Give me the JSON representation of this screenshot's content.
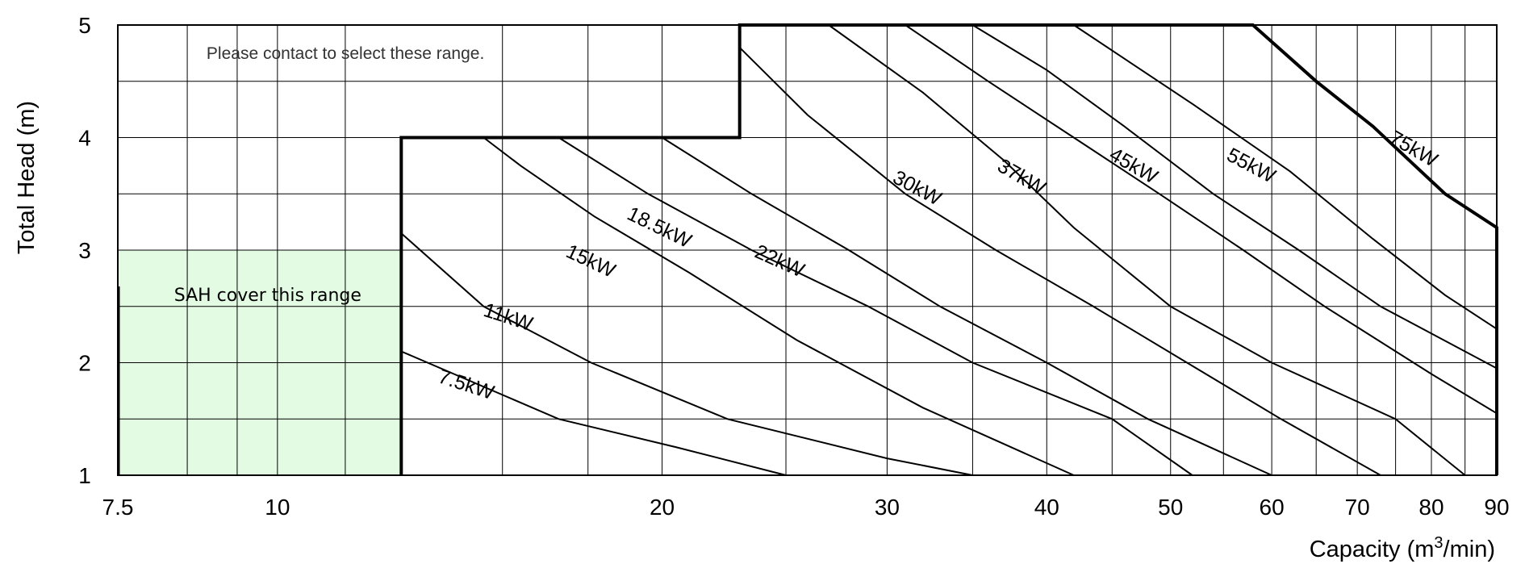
{
  "chart_data": {
    "type": "line",
    "title": "",
    "xlabel": "Capacity (m3/min)",
    "xlabel_main": "Capacity (m",
    "xlabel_sup": "3",
    "xlabel_tail": "/min)",
    "ylabel": "Total Head (m)",
    "x_scale": "log",
    "xlim": [
      7.5,
      90
    ],
    "ylim": [
      1,
      5
    ],
    "grid": true,
    "x_ticks": [
      7.5,
      10,
      20,
      30,
      40,
      50,
      60,
      70,
      80,
      90
    ],
    "x_tick_labels": [
      "7.5",
      "10",
      "20",
      "30",
      "40",
      "50",
      "60",
      "70",
      "80",
      "90"
    ],
    "x_minor_grid": [
      8.5,
      9.3,
      11.3,
      15,
      17.5,
      25,
      35,
      45,
      55,
      65,
      75,
      85
    ],
    "y_ticks": [
      1,
      2,
      3,
      4,
      5
    ],
    "y_tick_labels": [
      "1",
      "2",
      "3",
      "4",
      "5"
    ],
    "y_minor_grid": [
      1.5,
      2.5,
      3.5,
      4.5
    ],
    "series": [
      {
        "name": "7.5kW",
        "points": [
          [
            12.5,
            2.1
          ],
          [
            16.6,
            1.5
          ],
          [
            20.5,
            1.25
          ],
          [
            25,
            1.0
          ]
        ]
      },
      {
        "name": "11kW",
        "points": [
          [
            12.5,
            3.15
          ],
          [
            14.5,
            2.5
          ],
          [
            17.6,
            2.0
          ],
          [
            22.5,
            1.5
          ],
          [
            30,
            1.15
          ],
          [
            35,
            1.0
          ]
        ]
      },
      {
        "name": "15kW",
        "points": [
          [
            14.5,
            4.0
          ],
          [
            15.5,
            3.75
          ],
          [
            17.7,
            3.3
          ],
          [
            21,
            2.8
          ],
          [
            25.5,
            2.2
          ],
          [
            32,
            1.6
          ],
          [
            42,
            1.0
          ]
        ]
      },
      {
        "name": "18.5kW",
        "points": [
          [
            16.6,
            4.0
          ],
          [
            19.5,
            3.5
          ],
          [
            23.5,
            3.0
          ],
          [
            29,
            2.5
          ],
          [
            35,
            2.0
          ],
          [
            45,
            1.5
          ],
          [
            52,
            1.0
          ]
        ]
      },
      {
        "name": "22kW",
        "points": [
          [
            20,
            4.0
          ],
          [
            23.5,
            3.5
          ],
          [
            28,
            3.0
          ],
          [
            33,
            2.5
          ],
          [
            40,
            2.0
          ],
          [
            48,
            1.5
          ],
          [
            60,
            1.0
          ]
        ]
      },
      {
        "name": "30kW",
        "points": [
          [
            23,
            4.8
          ],
          [
            26,
            4.2
          ],
          [
            31,
            3.5
          ],
          [
            36.5,
            3.0
          ],
          [
            43.5,
            2.5
          ],
          [
            51.5,
            2.0
          ],
          [
            61,
            1.5
          ],
          [
            73,
            1.0
          ]
        ]
      },
      {
        "name": "37kW",
        "points": [
          [
            27,
            5.0
          ],
          [
            32,
            4.4
          ],
          [
            37,
            3.8
          ],
          [
            42,
            3.2
          ],
          [
            50,
            2.5
          ],
          [
            60,
            2.0
          ],
          [
            75,
            1.5
          ],
          [
            85,
            1.0
          ]
        ]
      },
      {
        "name": "45kW",
        "points": [
          [
            31,
            5.0
          ],
          [
            36,
            4.5
          ],
          [
            42,
            4.0
          ],
          [
            49,
            3.5
          ],
          [
            57,
            3.0
          ],
          [
            66,
            2.5
          ],
          [
            80,
            1.9
          ],
          [
            90,
            1.55
          ]
        ]
      },
      {
        "name": "55kW",
        "points": [
          [
            35,
            5.0
          ],
          [
            40,
            4.6
          ],
          [
            46,
            4.1
          ],
          [
            54,
            3.5
          ],
          [
            63,
            3.0
          ],
          [
            73,
            2.5
          ],
          [
            90,
            1.95
          ]
        ]
      },
      {
        "name": "75kW",
        "points": [
          [
            42,
            5.0
          ],
          [
            52,
            4.3
          ],
          [
            62,
            3.7
          ],
          [
            72,
            3.1
          ],
          [
            82,
            2.6
          ],
          [
            90,
            2.3
          ]
        ]
      }
    ],
    "envelope": [
      [
        12.5,
        1.0
      ],
      [
        12.5,
        4.0
      ],
      [
        23,
        4.0
      ],
      [
        23,
        5.0
      ],
      [
        58,
        5.0
      ],
      [
        65,
        4.5
      ],
      [
        72,
        4.1
      ],
      [
        82,
        3.5
      ],
      [
        90,
        3.2
      ],
      [
        90,
        1.0
      ]
    ],
    "label_positions": [
      {
        "name": "7.5kW",
        "x": 14.0,
        "y": 1.75,
        "angle": 18
      },
      {
        "name": "11kW",
        "x": 15.1,
        "y": 2.35,
        "angle": 18
      },
      {
        "name": "15kW",
        "x": 17.5,
        "y": 2.85,
        "angle": 25
      },
      {
        "name": "18.5kW",
        "x": 19.8,
        "y": 3.15,
        "angle": 26
      },
      {
        "name": "22kW",
        "x": 24.6,
        "y": 2.85,
        "angle": 24
      },
      {
        "name": "30kW",
        "x": 31.5,
        "y": 3.5,
        "angle": 28
      },
      {
        "name": "37kW",
        "x": 38.0,
        "y": 3.6,
        "angle": 30
      },
      {
        "name": "45kW",
        "x": 46.5,
        "y": 3.7,
        "angle": 30
      },
      {
        "name": "55kW",
        "x": 57.5,
        "y": 3.7,
        "angle": 28
      },
      {
        "name": "75kW",
        "x": 77.0,
        "y": 3.85,
        "angle": 30
      }
    ],
    "annotations": [
      {
        "name": "contact-note",
        "text": "Please contact to select these range.",
        "x": 8.8,
        "y": 4.75
      },
      {
        "name": "sah-note",
        "text": "SAH cover this range",
        "x": 8.3,
        "y": 2.6
      }
    ],
    "sah_region": {
      "x": [
        7.5,
        12.5
      ],
      "y": [
        1,
        3
      ],
      "color": "#e3fbe3"
    }
  }
}
